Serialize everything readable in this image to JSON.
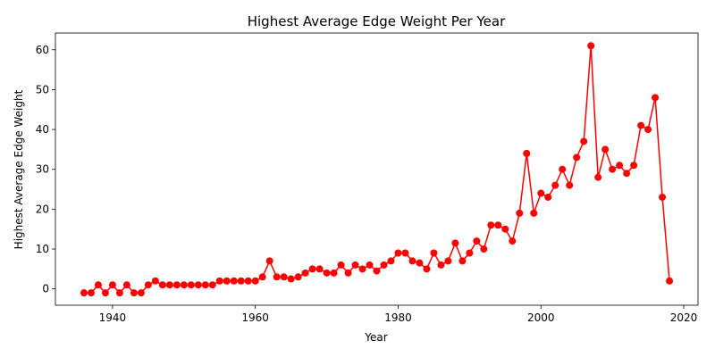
{
  "chart_data": {
    "type": "line",
    "title": "Highest Average Edge Weight Per Year",
    "xlabel": "Year",
    "ylabel": "Highest Average Edge Weight",
    "xlim": [
      1932,
      2022
    ],
    "ylim": [
      -4.1,
      64.2
    ],
    "xticks": [
      1940,
      1960,
      1980,
      2000,
      2020
    ],
    "yticks": [
      0,
      10,
      20,
      30,
      40,
      50,
      60
    ],
    "grid": false,
    "legend": "none",
    "color": "#ff0000",
    "marker": "circle",
    "x": [
      1936,
      1937,
      1938,
      1939,
      1940,
      1941,
      1942,
      1943,
      1944,
      1945,
      1946,
      1947,
      1948,
      1949,
      1950,
      1951,
      1952,
      1953,
      1954,
      1955,
      1956,
      1957,
      1958,
      1959,
      1960,
      1961,
      1962,
      1963,
      1964,
      1965,
      1966,
      1967,
      1968,
      1969,
      1970,
      1971,
      1972,
      1973,
      1974,
      1975,
      1976,
      1977,
      1978,
      1979,
      1980,
      1981,
      1982,
      1983,
      1984,
      1985,
      1986,
      1987,
      1988,
      1989,
      1990,
      1991,
      1992,
      1993,
      1994,
      1995,
      1996,
      1997,
      1998,
      1999,
      2000,
      2001,
      2002,
      2003,
      2004,
      2005,
      2006,
      2007,
      2008,
      2009,
      2010,
      2011,
      2012,
      2013,
      2014,
      2015,
      2016,
      2017,
      2018
    ],
    "y": [
      -1,
      -1,
      1,
      -1,
      1,
      -1,
      1,
      -1,
      -1,
      1,
      2,
      1,
      1,
      1,
      1,
      1,
      1,
      1,
      1,
      2,
      2,
      2,
      2,
      2,
      2,
      3,
      7,
      3,
      3,
      2.5,
      3,
      4,
      5,
      5,
      4,
      4,
      6,
      4,
      6,
      5,
      6,
      4.5,
      6,
      7,
      9,
      9,
      7,
      6.5,
      5,
      9,
      6,
      7,
      11.5,
      7,
      9,
      12,
      10,
      16,
      16,
      15,
      12,
      19,
      34,
      19,
      24,
      23,
      26,
      30,
      26,
      33,
      37,
      61,
      28,
      35,
      30,
      31,
      29,
      31,
      41,
      40,
      48,
      23,
      2
    ]
  }
}
